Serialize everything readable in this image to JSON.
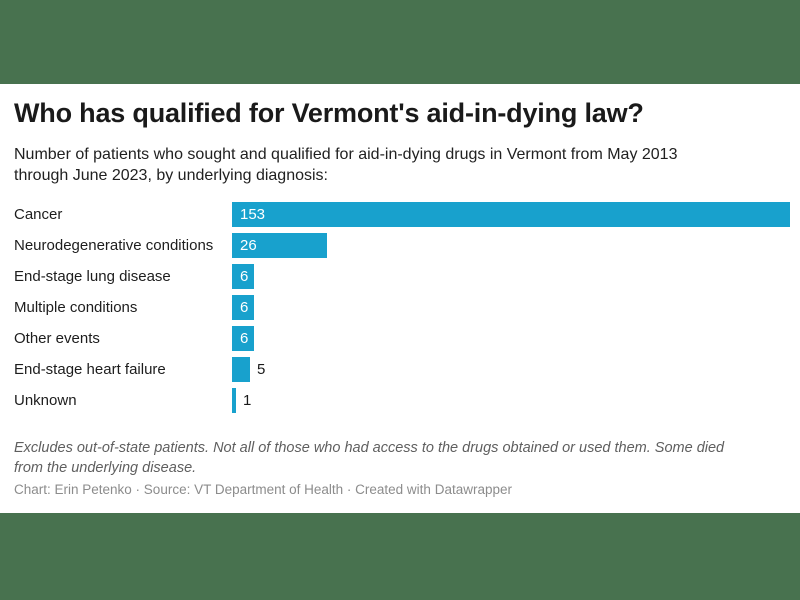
{
  "page": {
    "background_color": "#48724F",
    "card_color": "#ffffff"
  },
  "header": {
    "title": "Who has qualified for Vermont's aid-in-dying law?",
    "subtitle_lines": [
      "Number of patients who sought and qualified for aid-in-dying drugs in Vermont from May 2013",
      "through June 2023, by underlying diagnosis:"
    ]
  },
  "chart_data": {
    "type": "bar",
    "orientation": "horizontal",
    "title": "Who has qualified for Vermont's aid-in-dying law?",
    "categories": [
      "Cancer",
      "Neurodegenerative conditions",
      "End-stage lung disease",
      "Multiple conditions",
      "Other events",
      "End-stage heart failure",
      "Unknown"
    ],
    "values": [
      153,
      26,
      6,
      6,
      6,
      5,
      1
    ],
    "xlim": [
      0,
      153
    ],
    "bar_color": "#18a1cd",
    "value_label_color_inside": "#ffffff",
    "value_label_color_outside": "#1a1a1a",
    "value_label_placement": "inside bar when it fits, otherwise right of bar",
    "grid": false,
    "legend": false,
    "xlabel": "",
    "ylabel": ""
  },
  "footer": {
    "notes_lines": [
      "Excludes out-of-state patients. Not all of those who had access to the drugs obtained or used them. Some died",
      "from the underlying disease."
    ],
    "credits": "Chart: Erin Petenko · Source: VT Department of Health · Created with Datawrapper"
  }
}
